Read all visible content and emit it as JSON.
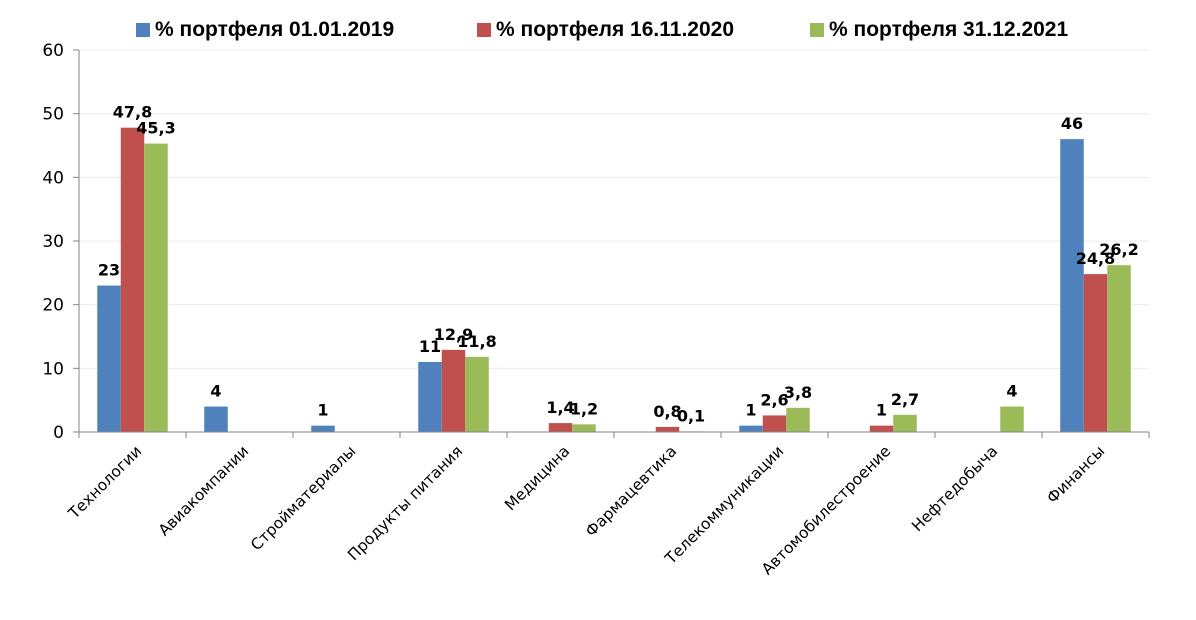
{
  "chart_data": {
    "type": "bar",
    "title": "",
    "xlabel": "",
    "ylabel": "",
    "ylim": [
      0,
      60
    ],
    "yticks": [
      0,
      10,
      20,
      30,
      40,
      50,
      60
    ],
    "grid": true,
    "legend_position": "top",
    "categories": [
      "Технологии",
      "Авиакомпании",
      "Стройматериалы",
      "Продукты питания",
      "Медицина",
      "Фармацевтика",
      "Телекоммуникации",
      "Автомобилестроение",
      "Нефтедобыча",
      "Финансы"
    ],
    "series": [
      {
        "name": "% портфеля 01.01.2019",
        "color": "#4F81BD",
        "values": [
          23,
          4,
          1,
          11,
          null,
          null,
          1,
          null,
          null,
          46
        ],
        "labels": [
          "23",
          "4",
          "1",
          "11",
          "",
          "",
          "1",
          "",
          "",
          "46"
        ]
      },
      {
        "name": "% портфеля 16.11.2020",
        "color": "#C0504D",
        "values": [
          47.8,
          null,
          null,
          12.9,
          1.4,
          0.8,
          2.6,
          1,
          null,
          24.8
        ],
        "labels": [
          "47,8",
          "",
          "",
          "12,9",
          "1,4",
          "0,8",
          "2,6",
          "1",
          "",
          "24,8"
        ]
      },
      {
        "name": "% портфеля 31.12.2021",
        "color": "#9BBB59",
        "values": [
          45.3,
          null,
          null,
          11.8,
          1.2,
          0.1,
          3.8,
          2.7,
          4,
          26.2
        ],
        "labels": [
          "45,3",
          "",
          "",
          "11,8",
          "1,2",
          "0,1",
          "3,8",
          "2,7",
          "4",
          "26,2"
        ]
      }
    ]
  }
}
